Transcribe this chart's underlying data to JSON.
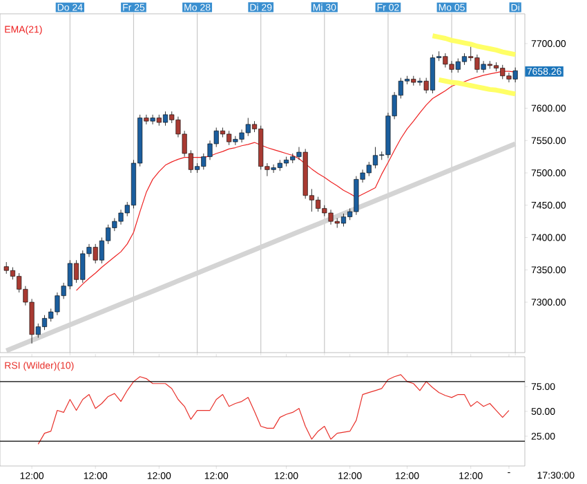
{
  "chart_data": [
    {
      "type": "candlestick",
      "categories": [
        null,
        null,
        null,
        null,
        null,
        null,
        null,
        null,
        null,
        null,
        "Do 24",
        null,
        null,
        null,
        null,
        null,
        null,
        null,
        null,
        null,
        "Fr 25",
        null,
        null,
        null,
        null,
        null,
        null,
        null,
        null,
        null,
        "Mo 28",
        null,
        null,
        null,
        null,
        null,
        null,
        null,
        null,
        null,
        "Di 29",
        null,
        null,
        null,
        null,
        null,
        null,
        null,
        null,
        null,
        "Mi 30",
        null,
        null,
        null,
        null,
        null,
        null,
        null,
        null,
        null,
        "Fr 02",
        null,
        null,
        null,
        null,
        null,
        null,
        null,
        null,
        null,
        "Mo 05",
        null,
        null,
        null,
        null,
        null,
        null,
        null,
        null,
        null,
        "Di"
      ],
      "ohlc": [
        [
          7355,
          7362,
          7344,
          7349
        ],
        [
          7349,
          7354,
          7335,
          7340
        ],
        [
          7340,
          7345,
          7315,
          7320
        ],
        [
          7320,
          7325,
          7295,
          7300
        ],
        [
          7300,
          7305,
          7236,
          7250
        ],
        [
          7250,
          7267,
          7245,
          7262
        ],
        [
          7262,
          7280,
          7257,
          7275
        ],
        [
          7275,
          7290,
          7270,
          7285
        ],
        [
          7285,
          7315,
          7280,
          7310
        ],
        [
          7310,
          7330,
          7305,
          7325
        ],
        [
          7325,
          7365,
          7320,
          7360
        ],
        [
          7360,
          7365,
          7330,
          7335
        ],
        [
          7335,
          7380,
          7330,
          7375
        ],
        [
          7375,
          7390,
          7370,
          7385
        ],
        [
          7385,
          7390,
          7360,
          7365
        ],
        [
          7365,
          7400,
          7360,
          7395
        ],
        [
          7395,
          7420,
          7390,
          7415
        ],
        [
          7415,
          7430,
          7410,
          7425
        ],
        [
          7425,
          7443,
          7420,
          7438
        ],
        [
          7438,
          7455,
          7433,
          7450
        ],
        [
          7450,
          7520,
          7445,
          7515
        ],
        [
          7515,
          7590,
          7510,
          7585
        ],
        [
          7585,
          7590,
          7575,
          7580
        ],
        [
          7580,
          7590,
          7575,
          7585
        ],
        [
          7585,
          7590,
          7573,
          7578
        ],
        [
          7578,
          7595,
          7573,
          7590
        ],
        [
          7590,
          7595,
          7577,
          7582
        ],
        [
          7582,
          7587,
          7555,
          7560
        ],
        [
          7560,
          7565,
          7525,
          7530
        ],
        [
          7530,
          7535,
          7500,
          7505
        ],
        [
          7505,
          7515,
          7500,
          7510
        ],
        [
          7510,
          7530,
          7505,
          7525
        ],
        [
          7525,
          7550,
          7520,
          7545
        ],
        [
          7545,
          7570,
          7540,
          7565
        ],
        [
          7565,
          7570,
          7555,
          7560
        ],
        [
          7560,
          7565,
          7543,
          7548
        ],
        [
          7548,
          7557,
          7543,
          7552
        ],
        [
          7552,
          7567,
          7547,
          7562
        ],
        [
          7562,
          7585,
          7557,
          7575
        ],
        [
          7575,
          7580,
          7563,
          7568
        ],
        [
          7568,
          7573,
          7505,
          7510
        ],
        [
          7510,
          7515,
          7495,
          7505
        ],
        [
          7505,
          7513,
          7500,
          7508
        ],
        [
          7508,
          7520,
          7503,
          7515
        ],
        [
          7515,
          7525,
          7510,
          7520
        ],
        [
          7520,
          7530,
          7515,
          7525
        ],
        [
          7525,
          7540,
          7520,
          7532
        ],
        [
          7532,
          7537,
          7460,
          7465
        ],
        [
          7465,
          7475,
          7440,
          7458
        ],
        [
          7458,
          7463,
          7440,
          7445
        ],
        [
          7445,
          7450,
          7433,
          7438
        ],
        [
          7438,
          7443,
          7420,
          7425
        ],
        [
          7425,
          7430,
          7415,
          7422
        ],
        [
          7422,
          7437,
          7417,
          7432
        ],
        [
          7432,
          7445,
          7427,
          7440
        ],
        [
          7440,
          7495,
          7435,
          7490
        ],
        [
          7490,
          7505,
          7485,
          7500
        ],
        [
          7500,
          7517,
          7495,
          7512
        ],
        [
          7512,
          7540,
          7507,
          7527
        ],
        [
          7527,
          7533,
          7520,
          7528
        ],
        [
          7528,
          7593,
          7523,
          7588
        ],
        [
          7588,
          7625,
          7583,
          7620
        ],
        [
          7620,
          7647,
          7615,
          7642
        ],
        [
          7642,
          7650,
          7637,
          7645
        ],
        [
          7645,
          7650,
          7635,
          7640
        ],
        [
          7640,
          7647,
          7635,
          7642
        ],
        [
          7642,
          7647,
          7623,
          7628
        ],
        [
          7628,
          7683,
          7623,
          7678
        ],
        [
          7678,
          7688,
          7673,
          7680
        ],
        [
          7680,
          7685,
          7663,
          7668
        ],
        [
          7668,
          7673,
          7655,
          7660
        ],
        [
          7660,
          7677,
          7655,
          7672
        ],
        [
          7672,
          7685,
          7667,
          7680
        ],
        [
          7680,
          7695,
          7673,
          7678
        ],
        [
          7678,
          7683,
          7655,
          7660
        ],
        [
          7660,
          7673,
          7655,
          7668
        ],
        [
          7668,
          7673,
          7661,
          7666
        ],
        [
          7666,
          7671,
          7657,
          7662
        ],
        [
          7662,
          7667,
          7645,
          7650
        ],
        [
          7650,
          7655,
          7640,
          7645
        ],
        [
          7645,
          7663,
          7640,
          7658
        ]
      ],
      "series": [
        {
          "type": "line",
          "name": "EMA(21)",
          "color": "#ee2222",
          "values": [
            null,
            null,
            null,
            null,
            null,
            null,
            null,
            null,
            null,
            null,
            null,
            7318,
            7328,
            7337,
            7345,
            7354,
            7362,
            7370,
            7378,
            7390,
            7408,
            7440,
            7470,
            7490,
            7502,
            7512,
            7517,
            7521,
            7524,
            7524,
            7524,
            7524,
            7526,
            7530,
            7533,
            7537,
            7539,
            7542,
            7544,
            7547,
            7543,
            7539,
            7536,
            7533,
            7530,
            7527,
            7522,
            7514,
            7506,
            7499,
            7493,
            7486,
            7480,
            7473,
            7468,
            7462,
            7467,
            7472,
            7477,
            7498,
            7516,
            7535,
            7553,
            7568,
            7580,
            7593,
            7605,
            7615,
            7621,
            7627,
            7634,
            7638,
            7641,
            7645,
            7648,
            7651,
            7653,
            7655,
            7657,
            7657,
            7656
          ]
        },
        {
          "type": "line",
          "color": "#d4d4d4",
          "values": [
            7225,
            7229,
            7233,
            7237,
            7241,
            7245,
            7249,
            7253,
            7257,
            7261,
            7265,
            7269,
            7273,
            7277,
            7281,
            7285,
            7289,
            7293,
            7297,
            7301,
            7305,
            7309,
            7313,
            7317,
            7321,
            7325,
            7329,
            7333,
            7337,
            7341,
            7345,
            7349,
            7353,
            7357,
            7361,
            7365,
            7369,
            7373,
            7377,
            7381,
            7385,
            7389,
            7393,
            7397,
            7401,
            7405,
            7409,
            7413,
            7417,
            7421,
            7425,
            7429,
            7433,
            7437,
            7441,
            7445,
            7449,
            7453,
            7457,
            7461,
            7465,
            7469,
            7473,
            7477,
            7481,
            7485,
            7489,
            7493,
            7497,
            7501,
            7505,
            7509,
            7513,
            7517,
            7521,
            7525,
            7529,
            7533,
            7537,
            7541,
            7545
          ]
        },
        {
          "type": "line",
          "color": "#ffff66",
          "values": [
            null,
            null,
            null,
            null,
            null,
            null,
            null,
            null,
            null,
            null,
            null,
            null,
            null,
            null,
            null,
            null,
            null,
            null,
            null,
            null,
            null,
            null,
            null,
            null,
            null,
            null,
            null,
            null,
            null,
            null,
            null,
            null,
            null,
            null,
            null,
            null,
            null,
            null,
            null,
            null,
            null,
            null,
            null,
            null,
            null,
            null,
            null,
            null,
            null,
            null,
            null,
            null,
            null,
            null,
            null,
            null,
            null,
            null,
            null,
            null,
            null,
            null,
            null,
            null,
            null,
            null,
            null,
            7712,
            7710,
            7708,
            7705,
            7703,
            7701,
            7699,
            7696,
            7694,
            7692,
            7690,
            7687,
            7685,
            7683
          ]
        },
        {
          "type": "line",
          "color": "#ffff66",
          "values": [
            null,
            null,
            null,
            null,
            null,
            null,
            null,
            null,
            null,
            null,
            null,
            null,
            null,
            null,
            null,
            null,
            null,
            null,
            null,
            null,
            null,
            null,
            null,
            null,
            null,
            null,
            null,
            null,
            null,
            null,
            null,
            null,
            null,
            null,
            null,
            null,
            null,
            null,
            null,
            null,
            null,
            null,
            null,
            null,
            null,
            null,
            null,
            null,
            null,
            null,
            null,
            null,
            null,
            null,
            null,
            null,
            null,
            null,
            null,
            null,
            null,
            null,
            null,
            null,
            null,
            null,
            null,
            null,
            7644,
            7642,
            7640,
            7639,
            7637,
            7635,
            7633,
            7631,
            7629,
            7628,
            7626,
            7624,
            7622
          ]
        }
      ],
      "ylim": [
        7222,
        7746
      ],
      "yticks": [
        {
          "value": 7300,
          "label": "7300.00"
        },
        {
          "value": 7350,
          "label": "7350.00"
        },
        {
          "value": 7400,
          "label": "7400.00"
        },
        {
          "value": 7450,
          "label": "7450.00"
        },
        {
          "value": 7500,
          "label": "7500.00"
        },
        {
          "value": 7550,
          "label": "7550.00"
        },
        {
          "value": 7600,
          "label": "7600.00"
        },
        {
          "value": 7650,
          "label": null
        },
        {
          "value": 7700,
          "label": "7700.00"
        }
      ],
      "grid": "x",
      "annotations": [
        "7658.26"
      ]
    },
    {
      "type": "line",
      "categories": [
        null,
        null,
        null,
        null,
        "12:00",
        null,
        null,
        null,
        null,
        null,
        null,
        null,
        null,
        null,
        "12:00",
        null,
        null,
        null,
        null,
        null,
        null,
        null,
        null,
        null,
        "12:00",
        null,
        null,
        null,
        null,
        null,
        null,
        null,
        null,
        "12:00",
        null,
        null,
        null,
        null,
        null,
        null,
        null,
        null,
        null,
        null,
        "12:00",
        null,
        null,
        null,
        null,
        null,
        null,
        null,
        null,
        null,
        "12:00",
        null,
        null,
        null,
        null,
        null,
        null,
        null,
        null,
        "12:00",
        null,
        null,
        null,
        null,
        null,
        null,
        null,
        null,
        null,
        "12:00",
        null,
        null,
        null,
        null,
        null,
        "-",
        null
      ],
      "series": [
        {
          "name": "RSI (Wilder)(10)",
          "color": "#e8302a",
          "values": [
            null,
            null,
            null,
            null,
            null,
            17,
            28,
            30,
            51,
            49,
            62,
            51,
            62,
            67,
            53,
            58,
            65,
            68,
            60,
            71,
            80,
            85,
            83,
            78,
            78,
            78,
            73,
            62,
            55,
            42,
            51,
            51,
            51,
            62,
            67,
            55,
            58,
            60,
            64,
            50,
            35,
            33,
            33,
            44,
            47,
            49,
            53,
            35,
            22,
            30,
            35,
            22,
            28,
            29,
            30,
            41,
            67,
            69,
            71,
            73,
            82,
            85,
            87,
            80,
            78,
            71,
            80,
            74,
            69,
            66,
            64,
            67,
            67,
            55,
            60,
            55,
            58,
            51,
            44,
            51,
            null
          ]
        }
      ],
      "ylim": [
        -5,
        105
      ],
      "yticks": [
        {
          "value": 25,
          "label": "25.00"
        },
        {
          "value": 50,
          "label": "50.00"
        },
        {
          "value": 75,
          "label": "75.00"
        }
      ],
      "ref_lines": [
        {
          "axis": "y",
          "value": 80,
          "color": "#000000"
        },
        {
          "axis": "y",
          "value": 20,
          "color": "#000000"
        }
      ],
      "annotations": [
        "17:30:00"
      ]
    }
  ]
}
